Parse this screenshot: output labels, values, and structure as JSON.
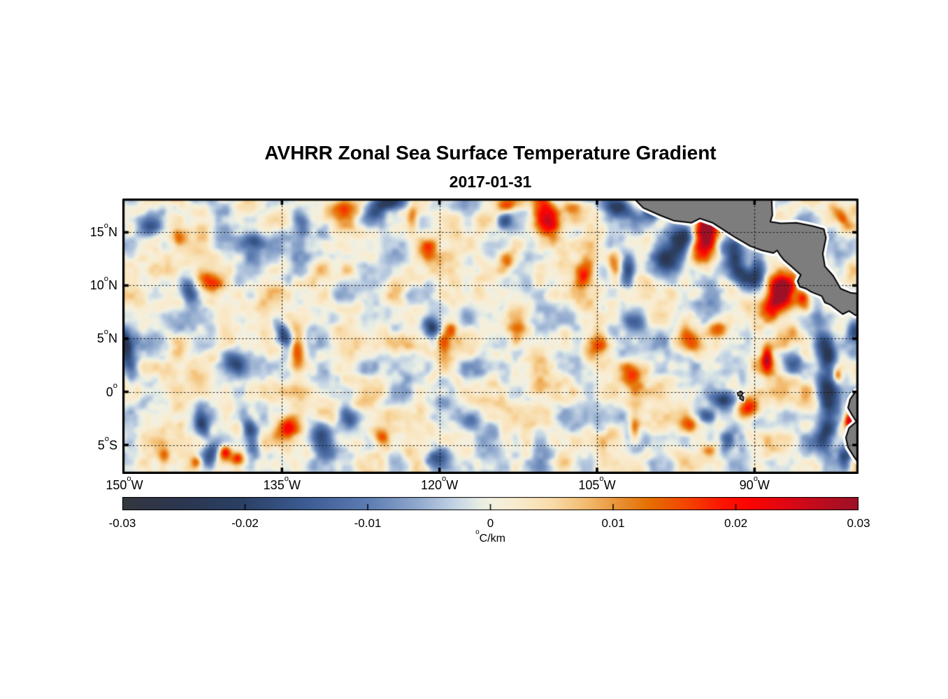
{
  "chart_data": {
    "type": "heatmap",
    "title": "AVHRR Zonal Sea Surface Temperature Gradient",
    "subtitle": "2017-01-31",
    "extent": {
      "lon_min": -150.2,
      "lon_max": -80.1,
      "lat_min": -7.72,
      "lat_max": 18.18
    },
    "x_ticks": [
      {
        "lon": -150,
        "num": "150",
        "sup": "o",
        "dir": "W"
      },
      {
        "lon": -135,
        "num": "135",
        "sup": "o",
        "dir": "W"
      },
      {
        "lon": -120,
        "num": "120",
        "sup": "o",
        "dir": "W"
      },
      {
        "lon": -105,
        "num": "105",
        "sup": "o",
        "dir": "W"
      },
      {
        "lon": -90,
        "num": "90",
        "sup": "o",
        "dir": "W"
      }
    ],
    "y_ticks": [
      {
        "lat": 15,
        "num": "15",
        "sup": "o",
        "dir": "N"
      },
      {
        "lat": 10,
        "num": "10",
        "sup": "o",
        "dir": "N"
      },
      {
        "lat": 5,
        "num": "5",
        "sup": "o",
        "dir": "N"
      },
      {
        "lat": 0,
        "num": "0",
        "sup": "o",
        "dir": ""
      },
      {
        "lat": -5,
        "num": "5",
        "sup": "o",
        "dir": "S"
      }
    ],
    "grid": {
      "lats": [
        15,
        10,
        5,
        0,
        -5
      ],
      "lons": [
        -135,
        -120,
        -105,
        -90
      ],
      "style": "dotted",
      "color": "#141414"
    },
    "colorbar": {
      "ticks": [
        {
          "v": -0.03,
          "label": "-0.03"
        },
        {
          "v": -0.02,
          "label": "-0.02"
        },
        {
          "v": -0.01,
          "label": "-0.01"
        },
        {
          "v": 0,
          "label": "0"
        },
        {
          "v": 0.01,
          "label": "0.01"
        },
        {
          "v": 0.02,
          "label": "0.02"
        },
        {
          "v": 0.03,
          "label": "0.03"
        }
      ],
      "inner_tick_values": [
        -0.02,
        -0.01,
        0,
        0.01,
        0.02
      ],
      "unit_sup": "o",
      "unit_text": "C/km",
      "vmin": -0.03,
      "vmax": 0.03,
      "stops": [
        [
          -0.03,
          "#34373e"
        ],
        [
          -0.025,
          "#2b3650"
        ],
        [
          -0.02,
          "#2c4166"
        ],
        [
          -0.015,
          "#3c5c93"
        ],
        [
          -0.01,
          "#5c7cb2"
        ],
        [
          -0.006,
          "#8fa8cc"
        ],
        [
          -0.003,
          "#c2d2e4"
        ],
        [
          -0.001,
          "#e4ece5"
        ],
        [
          0.0,
          "#f2f0e1"
        ],
        [
          0.002,
          "#f9ecd0"
        ],
        [
          0.005,
          "#f8dcab"
        ],
        [
          0.008,
          "#f2b96b"
        ],
        [
          0.011,
          "#e8892a"
        ],
        [
          0.013,
          "#e56f00"
        ],
        [
          0.016,
          "#f44400"
        ],
        [
          0.019,
          "#fb1400"
        ],
        [
          0.021,
          "#fb0500"
        ],
        [
          0.024,
          "#e00713"
        ],
        [
          0.027,
          "#bc0d1f"
        ],
        [
          0.03,
          "#9c1126"
        ]
      ]
    },
    "field": {
      "noise": {
        "octaves": [
          {
            "scale_deg": 2.3,
            "amp": 0.0058,
            "seed": 11
          },
          {
            "scale_deg": 1.15,
            "amp": 0.0036,
            "seed": 23
          },
          {
            "scale_deg": 0.6,
            "amp": 0.0016,
            "seed": 37
          }
        ]
      },
      "features": [
        [
          -94.6,
          15.0,
          0.75,
          1.25,
          0,
          0.036
        ],
        [
          -95.4,
          13.0,
          0.7,
          1.1,
          30,
          0.017
        ],
        [
          -96.9,
          14.3,
          0.85,
          1.15,
          -20,
          -0.027
        ],
        [
          -98.3,
          12.4,
          1.0,
          0.75,
          -35,
          -0.019
        ],
        [
          -91.9,
          12.9,
          0.8,
          1.4,
          8,
          -0.024
        ],
        [
          -90.6,
          10.6,
          0.9,
          0.7,
          -25,
          -0.021
        ],
        [
          -89.6,
          11.5,
          0.55,
          0.75,
          0,
          -0.016
        ],
        [
          -87.4,
          9.6,
          0.75,
          1.05,
          0,
          0.035
        ],
        [
          -88.4,
          7.9,
          0.8,
          0.85,
          -30,
          0.016
        ],
        [
          -85.4,
          8.7,
          0.5,
          0.8,
          20,
          0.024
        ],
        [
          -102.9,
          17.4,
          1.1,
          0.7,
          -20,
          -0.022
        ],
        [
          -99.6,
          16.9,
          0.7,
          0.6,
          0,
          -0.014
        ],
        [
          -103.3,
          12.0,
          0.5,
          1.0,
          10,
          0.017
        ],
        [
          -102.0,
          11.6,
          0.5,
          1.2,
          0,
          -0.018
        ],
        [
          -106.2,
          11.0,
          0.5,
          0.9,
          -15,
          0.015
        ],
        [
          -109.6,
          15.9,
          0.8,
          1.6,
          12,
          0.021
        ],
        [
          -107.4,
          17.4,
          0.7,
          0.5,
          0,
          0.014
        ],
        [
          -113.5,
          17.6,
          0.8,
          0.5,
          0,
          0.014
        ],
        [
          -113.9,
          16.1,
          0.5,
          0.6,
          0,
          -0.014
        ],
        [
          -122.6,
          16.5,
          0.4,
          0.8,
          0,
          0.013
        ],
        [
          -124.9,
          17.8,
          1.1,
          0.5,
          0,
          -0.023
        ],
        [
          -126.2,
          17.1,
          0.7,
          0.6,
          0,
          -0.015
        ],
        [
          -129.8,
          17.1,
          1.3,
          0.8,
          10,
          0.013
        ],
        [
          -121.2,
          13.4,
          0.6,
          0.7,
          0,
          0.013
        ],
        [
          -144.8,
          14.5,
          0.5,
          0.6,
          0,
          0.015
        ],
        [
          -147.6,
          15.3,
          0.8,
          0.6,
          20,
          -0.012
        ],
        [
          -137.8,
          14.1,
          0.6,
          0.5,
          0,
          -0.012
        ],
        [
          -133.1,
          15.9,
          0.5,
          0.9,
          25,
          -0.013
        ],
        [
          -113.4,
          12.4,
          0.5,
          0.6,
          0,
          0.012
        ],
        [
          -141.5,
          10.3,
          0.9,
          0.65,
          -30,
          0.016
        ],
        [
          -143.8,
          9.4,
          0.55,
          1.05,
          20,
          -0.016
        ],
        [
          -134.8,
          5.3,
          0.5,
          0.9,
          30,
          -0.021
        ],
        [
          -133.6,
          3.9,
          0.55,
          1.3,
          5,
          0.018
        ],
        [
          -149.8,
          3.8,
          0.5,
          1.7,
          15,
          -0.023
        ],
        [
          -139.5,
          2.8,
          0.7,
          1.0,
          35,
          -0.02
        ],
        [
          -146.5,
          2.0,
          2.0,
          1.5,
          0,
          0.007
        ],
        [
          -120.8,
          6.1,
          0.55,
          0.75,
          25,
          -0.019
        ],
        [
          -119.6,
          4.7,
          0.5,
          1.1,
          0,
          0.016
        ],
        [
          -118.9,
          5.9,
          0.4,
          0.5,
          0,
          0.013
        ],
        [
          -112.6,
          5.4,
          0.6,
          0.8,
          0,
          0.012
        ],
        [
          -104.9,
          4.2,
          0.8,
          0.9,
          -20,
          0.016
        ],
        [
          -101.3,
          6.6,
          0.7,
          0.6,
          0,
          -0.013
        ],
        [
          -96.3,
          4.9,
          0.6,
          0.9,
          15,
          0.012
        ],
        [
          -93.5,
          6.1,
          0.6,
          0.6,
          0,
          0.015
        ],
        [
          -88.8,
          3.2,
          0.35,
          0.85,
          0,
          0.026
        ],
        [
          -86.5,
          2.7,
          0.7,
          0.8,
          0,
          -0.016
        ],
        [
          -101.6,
          1.6,
          0.8,
          0.8,
          -20,
          0.017
        ],
        [
          -110.4,
          0.4,
          0.6,
          0.6,
          0,
          0.013
        ],
        [
          -92.9,
          -0.8,
          0.9,
          0.6,
          10,
          -0.022
        ],
        [
          -94.6,
          -2.3,
          0.7,
          0.6,
          -15,
          -0.015
        ],
        [
          -90.5,
          -1.5,
          0.9,
          0.7,
          20,
          0.022
        ],
        [
          -131.2,
          -4.4,
          0.85,
          1.2,
          25,
          -0.022
        ],
        [
          -134.5,
          -3.3,
          0.65,
          0.8,
          0,
          0.02
        ],
        [
          -140.4,
          -5.7,
          0.4,
          0.5,
          0,
          0.018
        ],
        [
          -139.2,
          -6.3,
          0.4,
          0.4,
          0,
          0.016
        ],
        [
          -138.0,
          -4.0,
          0.5,
          1.5,
          10,
          -0.018
        ],
        [
          -142.6,
          -3.2,
          0.5,
          0.9,
          10,
          -0.014
        ],
        [
          -141.8,
          -6.0,
          0.5,
          0.9,
          -20,
          -0.018
        ],
        [
          -143.2,
          -6.6,
          0.35,
          0.4,
          0,
          0.013
        ],
        [
          -146.2,
          -5.9,
          0.4,
          0.5,
          0,
          0.014
        ],
        [
          -125.6,
          -4.0,
          0.6,
          0.7,
          0,
          0.014
        ],
        [
          -128.6,
          -2.6,
          0.6,
          0.8,
          25,
          -0.014
        ],
        [
          -120.5,
          -6.2,
          0.8,
          0.7,
          0,
          -0.016
        ],
        [
          -117.0,
          -2.8,
          0.7,
          0.6,
          -20,
          -0.012
        ],
        [
          -101.4,
          -3.5,
          0.35,
          0.8,
          0,
          0.014
        ],
        [
          -96.1,
          -3.2,
          0.8,
          0.6,
          0,
          0.015
        ],
        [
          -94.3,
          -5.5,
          0.6,
          0.5,
          0,
          0.014
        ],
        [
          -92.6,
          -4.6,
          0.5,
          0.6,
          0,
          -0.014
        ],
        [
          -83.2,
          3.5,
          0.7,
          1.8,
          10,
          -0.026
        ],
        [
          -83.0,
          -0.5,
          0.65,
          1.4,
          5,
          -0.024
        ],
        [
          -83.3,
          -4.3,
          0.7,
          1.2,
          -10,
          -0.023
        ],
        [
          -81.4,
          -6.3,
          0.5,
          1.0,
          0,
          -0.02
        ],
        [
          -82.1,
          1.5,
          0.3,
          0.5,
          0,
          0.018
        ],
        [
          -81.0,
          -2.7,
          0.3,
          0.45,
          0,
          0.022
        ],
        [
          -80.4,
          5.9,
          0.5,
          0.9,
          0,
          -0.016
        ],
        [
          -86.3,
          5.6,
          0.5,
          0.7,
          0,
          0.012
        ],
        [
          -81.8,
          16.5,
          0.4,
          0.9,
          35,
          0.014
        ]
      ]
    },
    "land": {
      "fill": "#7d7d7d",
      "outline": "#000000",
      "halo": "#ffffff",
      "polygons": {
        "central_america": [
          [
            -101.9,
            18.6
          ],
          [
            -100.6,
            17.3
          ],
          [
            -99.0,
            16.6
          ],
          [
            -97.7,
            16.1
          ],
          [
            -96.0,
            15.9
          ],
          [
            -95.2,
            16.3
          ],
          [
            -94.0,
            15.9
          ],
          [
            -92.9,
            15.2
          ],
          [
            -91.8,
            14.5
          ],
          [
            -90.4,
            13.7
          ],
          [
            -89.3,
            13.3
          ],
          [
            -88.2,
            13.05
          ],
          [
            -87.85,
            13.3
          ],
          [
            -87.6,
            12.9
          ],
          [
            -87.2,
            12.4
          ],
          [
            -86.5,
            11.8
          ],
          [
            -85.6,
            11.0
          ],
          [
            -85.9,
            10.4
          ],
          [
            -85.7,
            9.9
          ],
          [
            -85.1,
            9.7
          ],
          [
            -84.6,
            9.4
          ],
          [
            -83.6,
            9.0
          ],
          [
            -83.3,
            8.4
          ],
          [
            -82.8,
            8.2
          ],
          [
            -81.6,
            7.3
          ],
          [
            -81.0,
            7.6
          ],
          [
            -80.4,
            7.2
          ],
          [
            -79.6,
            7.2
          ],
          [
            -79.6,
            9.2
          ],
          [
            -80.8,
            9.3
          ],
          [
            -81.8,
            9.7
          ],
          [
            -82.5,
            10.9
          ],
          [
            -83.3,
            11.8
          ],
          [
            -83.5,
            13.0
          ],
          [
            -83.2,
            14.5
          ],
          [
            -83.4,
            15.3
          ],
          [
            -84.5,
            15.6
          ],
          [
            -86.0,
            15.9
          ],
          [
            -87.5,
            15.85
          ],
          [
            -88.5,
            16.0
          ],
          [
            -88.3,
            16.6
          ],
          [
            -88.4,
            18.6
          ]
        ],
        "south_america": [
          [
            -79.6,
            0.3
          ],
          [
            -80.4,
            0.0
          ],
          [
            -80.9,
            -0.7
          ],
          [
            -81.1,
            -1.5
          ],
          [
            -80.7,
            -2.2
          ],
          [
            -80.3,
            -2.8
          ],
          [
            -81.0,
            -3.4
          ],
          [
            -81.3,
            -4.3
          ],
          [
            -81.1,
            -5.2
          ],
          [
            -80.6,
            -6.0
          ],
          [
            -80.1,
            -6.7
          ],
          [
            -79.6,
            -7.2
          ],
          [
            -79.3,
            -8.2
          ]
        ],
        "galapagos": [
          [
            -91.62,
            -0.12
          ],
          [
            -91.32,
            0.08
          ],
          [
            -91.08,
            -0.12
          ],
          [
            -91.25,
            -0.32
          ],
          [
            -91.02,
            -0.53
          ],
          [
            -91.08,
            -0.86
          ],
          [
            -91.42,
            -0.62
          ],
          [
            -91.35,
            -0.38
          ],
          [
            -91.58,
            -0.35
          ]
        ]
      }
    }
  }
}
